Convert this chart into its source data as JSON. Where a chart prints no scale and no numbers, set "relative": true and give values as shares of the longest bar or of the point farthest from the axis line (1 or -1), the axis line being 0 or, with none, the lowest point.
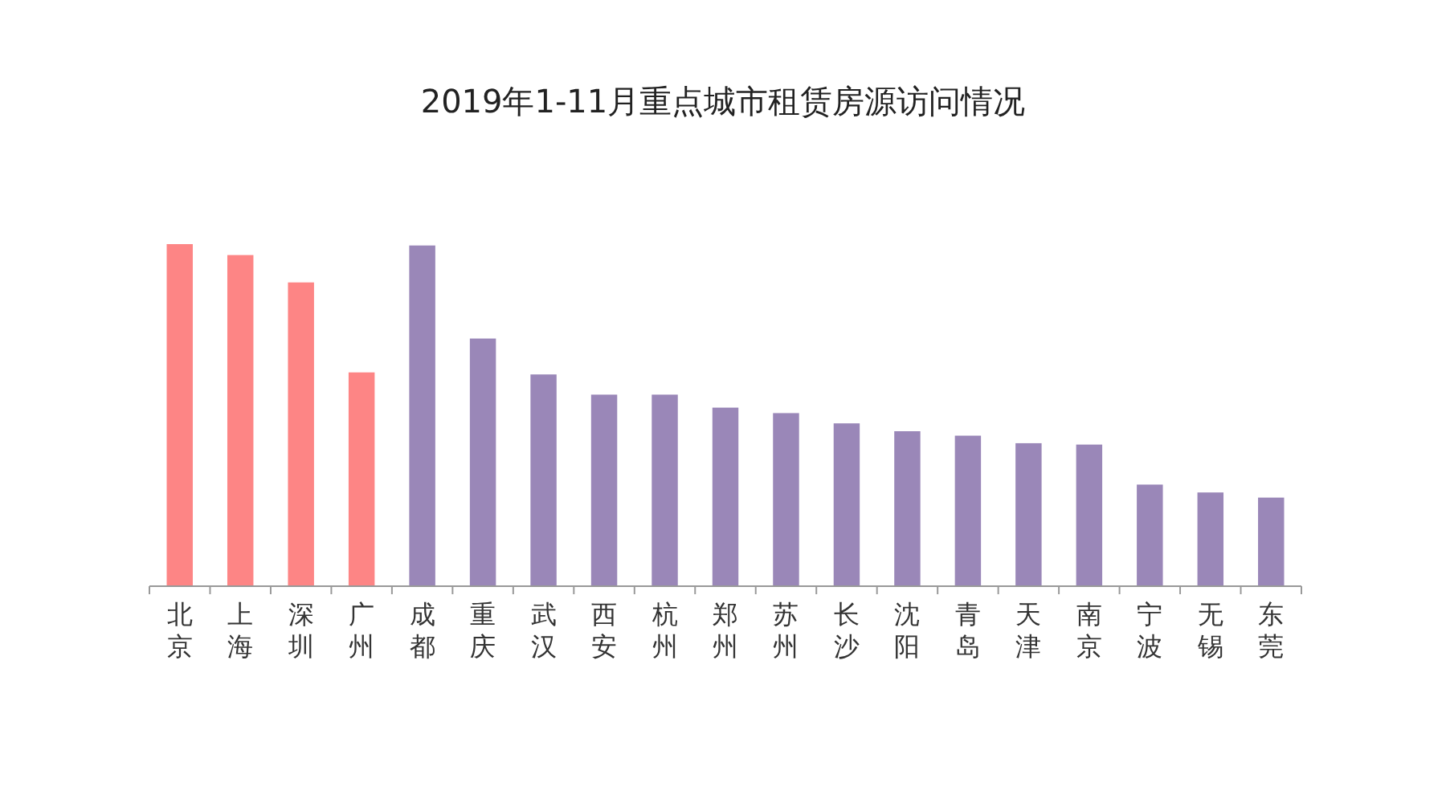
{
  "chart_data": {
    "type": "bar",
    "title": "2019年1-11月重点城市租赁房源访问情况",
    "categories": [
      "北京",
      "上海",
      "深圳",
      "广州",
      "成都",
      "重庆",
      "武汉",
      "西安",
      "杭州",
      "郑州",
      "苏州",
      "长沙",
      "沈阳",
      "青岛",
      "天津",
      "南京",
      "宁波",
      "无锡",
      "东莞"
    ],
    "values": [
      1,
      0.968,
      0.888,
      0.625,
      0.996,
      0.724,
      0.619,
      0.56,
      0.56,
      0.522,
      0.506,
      0.476,
      0.453,
      0.44,
      0.418,
      0.414,
      0.297,
      0.274,
      0.259
    ],
    "colors": [
      "#fd8585",
      "#fd8585",
      "#fd8585",
      "#fd8585",
      "#9a87b8",
      "#9a87b8",
      "#9a87b8",
      "#9a87b8",
      "#9a87b8",
      "#9a87b8",
      "#9a87b8",
      "#9a87b8",
      "#9a87b8",
      "#9a87b8",
      "#9a87b8",
      "#9a87b8",
      "#9a87b8",
      "#9a87b8",
      "#9a87b8"
    ],
    "relative": true
  }
}
